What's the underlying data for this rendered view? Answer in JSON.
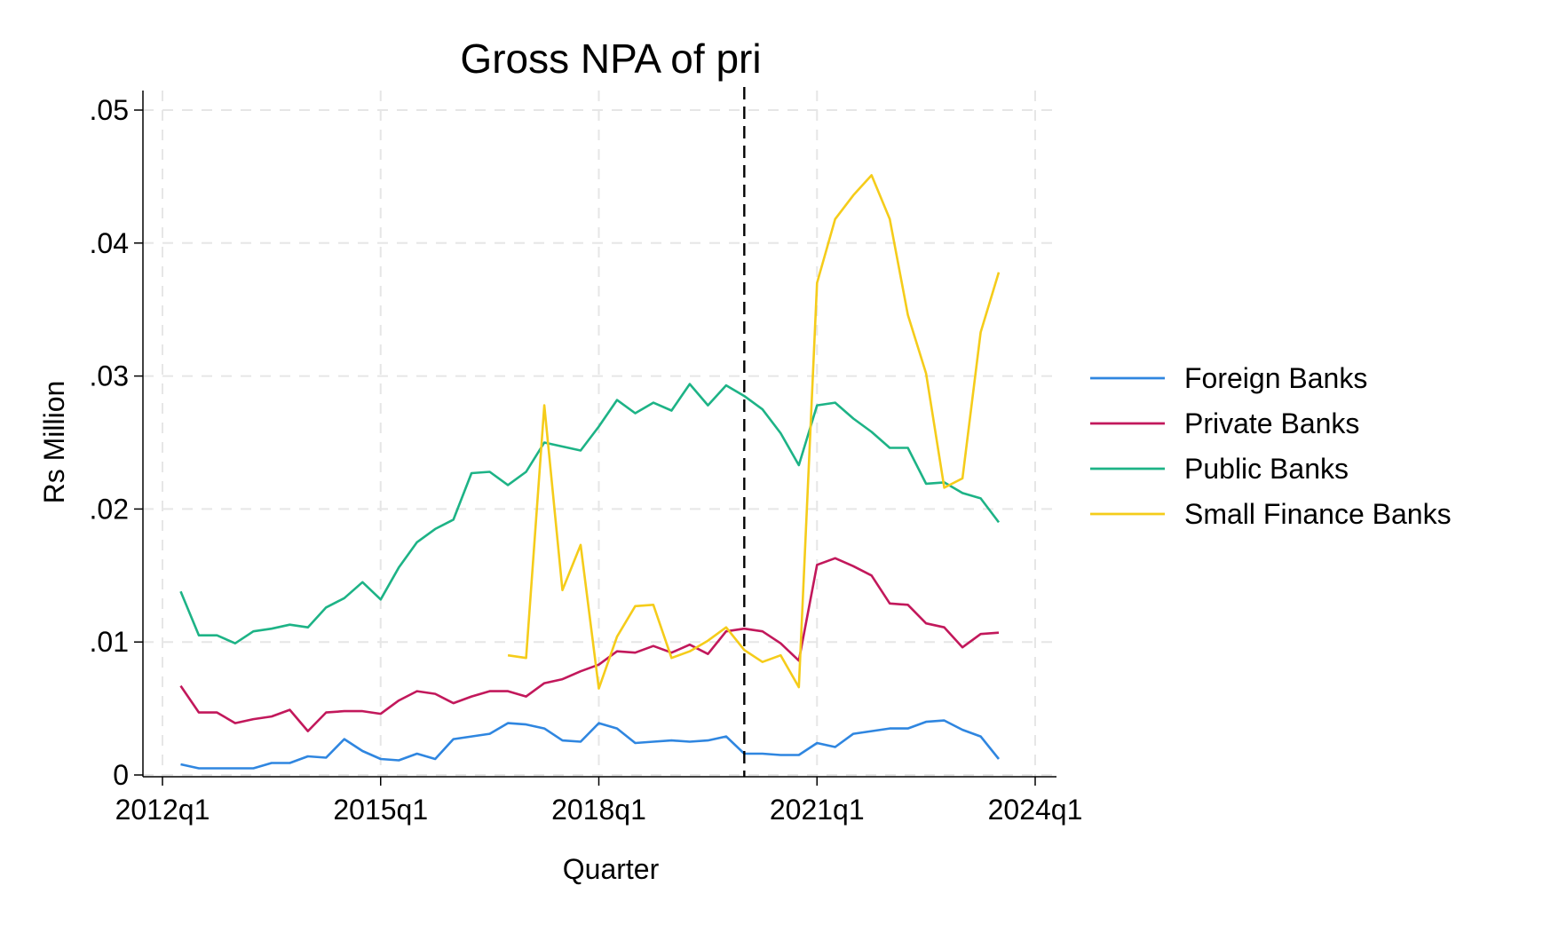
{
  "chart_data": {
    "type": "line",
    "title": "Gross NPA of pri",
    "xlabel": "Quarter",
    "ylabel": "Rs Million",
    "x_start": "2012q2",
    "x_ticks": [
      "2012q1",
      "2015q1",
      "2018q1",
      "2021q1",
      "2024q1"
    ],
    "xlim": [
      "2012q1",
      "2024q1"
    ],
    "ylim": [
      0,
      0.05
    ],
    "y_ticks": [
      0,
      0.01,
      0.02,
      0.03,
      0.04,
      0.05
    ],
    "y_tick_labels": [
      "0",
      ".01",
      ".02",
      ".03",
      ".04",
      ".05"
    ],
    "vline": "2020q1",
    "grid": true,
    "legend_position": "right",
    "series": [
      {
        "name": "Foreign Banks",
        "color": "#2f86e0",
        "values": [
          0.0008,
          0.0005,
          0.0005,
          0.0005,
          0.0005,
          0.0009,
          0.0009,
          0.0014,
          0.0013,
          0.0027,
          0.0018,
          0.0012,
          0.0011,
          0.0016,
          0.0012,
          0.0027,
          0.0029,
          0.0031,
          0.0039,
          0.0038,
          0.0035,
          0.0026,
          0.0025,
          0.0039,
          0.0035,
          0.0024,
          0.0025,
          0.0026,
          0.0025,
          0.0026,
          0.0029,
          0.0016,
          0.0016,
          0.0015,
          0.0015,
          0.0024,
          0.0021,
          0.0031,
          0.0033,
          0.0035,
          0.0035,
          0.004,
          0.0041,
          0.0034,
          0.0029,
          0.0012
        ]
      },
      {
        "name": "Private Banks",
        "color": "#c2185b",
        "values": [
          0.0067,
          0.0047,
          0.0047,
          0.0039,
          0.0042,
          0.0044,
          0.0049,
          0.0033,
          0.0047,
          0.0048,
          0.0048,
          0.0046,
          0.0056,
          0.0063,
          0.0061,
          0.0054,
          0.0059,
          0.0063,
          0.0063,
          0.0059,
          0.0069,
          0.0072,
          0.0078,
          0.0083,
          0.0093,
          0.0092,
          0.0097,
          0.0092,
          0.0098,
          0.0091,
          0.0108,
          0.011,
          0.0108,
          0.0099,
          0.0086,
          0.0158,
          0.0163,
          0.0157,
          0.015,
          0.0129,
          0.0128,
          0.0114,
          0.0111,
          0.0096,
          0.0106,
          0.0107
        ]
      },
      {
        "name": "Public Banks",
        "color": "#1db386",
        "values": [
          0.0138,
          0.0105,
          0.0105,
          0.0099,
          0.0108,
          0.011,
          0.0113,
          0.0111,
          0.0126,
          0.0133,
          0.0145,
          0.0132,
          0.0156,
          0.0175,
          0.0185,
          0.0192,
          0.0227,
          0.0228,
          0.0218,
          0.0228,
          0.025,
          0.0247,
          0.0244,
          0.0262,
          0.0282,
          0.0272,
          0.028,
          0.0274,
          0.0294,
          0.0278,
          0.0293,
          0.0285,
          0.0275,
          0.0257,
          0.0233,
          0.0278,
          0.028,
          0.0268,
          0.0258,
          0.0246,
          0.0246,
          0.0219,
          0.022,
          0.0212,
          0.0208,
          0.019
        ]
      },
      {
        "name": "Small Finance Banks",
        "color": "#f5cc1a",
        "values": [
          null,
          null,
          null,
          null,
          null,
          null,
          null,
          null,
          null,
          null,
          null,
          null,
          null,
          null,
          null,
          null,
          null,
          null,
          0.009,
          0.0088,
          0.0278,
          0.0139,
          0.0173,
          0.0065,
          0.0104,
          0.0127,
          0.0128,
          0.0088,
          0.0093,
          0.0101,
          0.0111,
          0.0094,
          0.0085,
          0.009,
          0.0066,
          0.037,
          0.0418,
          0.0436,
          0.0451,
          0.0418,
          0.0346,
          0.0302,
          0.0216,
          0.0223,
          0.0333,
          0.0378
        ]
      }
    ]
  }
}
